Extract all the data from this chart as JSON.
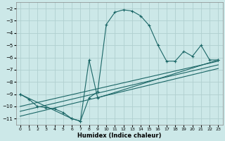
{
  "xlabel": "Humidex (Indice chaleur)",
  "bg_color": "#cce8e8",
  "grid_color": "#b0d0d0",
  "line_color": "#1a6666",
  "xlim": [
    -0.5,
    23.5
  ],
  "ylim": [
    -11.5,
    -1.5
  ],
  "yticks": [
    -11,
    -10,
    -9,
    -8,
    -7,
    -6,
    -5,
    -4,
    -3,
    -2
  ],
  "xticks": [
    0,
    1,
    2,
    3,
    4,
    5,
    6,
    7,
    8,
    9,
    10,
    11,
    12,
    13,
    14,
    15,
    16,
    17,
    18,
    19,
    20,
    21,
    22,
    23
  ],
  "line1_x": [
    0,
    1,
    2,
    3,
    4,
    5,
    6,
    7,
    8,
    9,
    10,
    11,
    12,
    13,
    14,
    15,
    16,
    17,
    18,
    19,
    20,
    21,
    22,
    23
  ],
  "line1_y": [
    -9.0,
    -9.4,
    -10.0,
    -10.1,
    -10.2,
    -10.5,
    -11.0,
    -11.2,
    -9.3,
    -8.8,
    -3.3,
    -2.3,
    -2.1,
    -2.2,
    -2.6,
    -3.4,
    -5.0,
    -6.3,
    -6.3,
    -5.5,
    -5.9,
    -5.0,
    -6.2,
    -6.2
  ],
  "line2_x": [
    0,
    6,
    7,
    8,
    9,
    23
  ],
  "line2_y": [
    -9.0,
    -11.0,
    -11.2,
    -6.2,
    -9.3,
    -6.2
  ],
  "line3_x": [
    0,
    23
  ],
  "line3_y": [
    -10.0,
    -6.3
  ],
  "line4_x": [
    0,
    23
  ],
  "line4_y": [
    -10.4,
    -6.6
  ],
  "line5_x": [
    0,
    23
  ],
  "line5_y": [
    -10.8,
    -6.9
  ]
}
